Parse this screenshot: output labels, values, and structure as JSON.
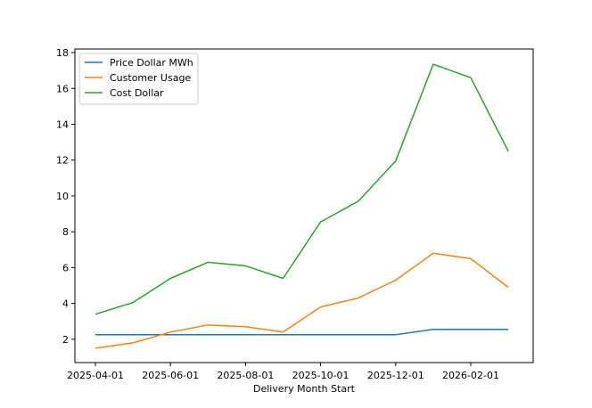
{
  "chart_data": {
    "type": "line",
    "title": "",
    "xlabel": "Delivery Month Start",
    "ylabel": "",
    "x": [
      "2025-04-01",
      "2025-05-01",
      "2025-06-01",
      "2025-07-01",
      "2025-08-01",
      "2025-09-01",
      "2025-10-01",
      "2025-11-01",
      "2025-12-01",
      "2026-01-01",
      "2026-02-01",
      "2026-03-01"
    ],
    "x_tick_labels": [
      "2025-04-01",
      "2025-06-01",
      "2025-08-01",
      "2025-10-01",
      "2025-12-01",
      "2026-02-01"
    ],
    "y_ticks": [
      2,
      4,
      6,
      8,
      10,
      12,
      14,
      16,
      18
    ],
    "ylim": [
      0.7,
      18.2
    ],
    "legend_position": "top-left",
    "series": [
      {
        "name": "Price Dollar MWh",
        "color": "#1f77b4",
        "values": [
          2.25,
          2.25,
          2.25,
          2.25,
          2.25,
          2.25,
          2.25,
          2.25,
          2.25,
          2.55,
          2.55,
          2.55
        ]
      },
      {
        "name": "Customer Usage",
        "color": "#ff7f0e",
        "values": [
          1.5,
          1.8,
          2.4,
          2.8,
          2.7,
          2.4,
          3.8,
          4.3,
          5.3,
          6.8,
          6.5,
          4.9
        ]
      },
      {
        "name": "Cost Dollar",
        "color": "#2ca02c",
        "values": [
          3.4,
          4.05,
          5.4,
          6.3,
          6.1,
          5.4,
          8.55,
          9.7,
          11.95,
          17.35,
          16.6,
          12.5
        ]
      }
    ]
  }
}
